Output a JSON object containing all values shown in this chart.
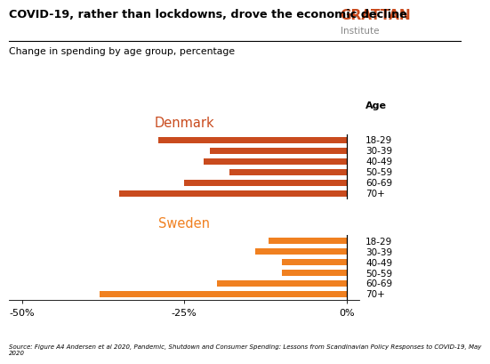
{
  "title": "COVID-19, rather than lockdowns, drove the economic decline",
  "subtitle": "Change in spending by age group, percentage",
  "age_groups": [
    "18-29",
    "30-39",
    "40-49",
    "50-59",
    "60-69",
    "70+"
  ],
  "denmark_values": [
    -29,
    -21,
    -22,
    -18,
    -25,
    -35
  ],
  "sweden_values": [
    -12,
    -14,
    -10,
    -10,
    -20,
    -38
  ],
  "denmark_color": "#C94B1E",
  "sweden_color": "#F08020",
  "xlim": [
    -52,
    2
  ],
  "xticks": [
    -50,
    -25,
    0
  ],
  "xticklabels": [
    "-50%",
    "-25%",
    "0%"
  ],
  "denmark_label": "Denmark",
  "sweden_label": "Sweden",
  "age_label": "Age",
  "source_text": "Source: Figure A4 Andersen et al 2020, Pandemic, Shutdown and Consumer Spending: Lessons from Scandinavian Policy Responses to COVID-19, May\n2020",
  "grattan_line1": "GRATTAN",
  "grattan_line2": "Institute",
  "background_color": "#FFFFFF",
  "bar_height": 0.6
}
